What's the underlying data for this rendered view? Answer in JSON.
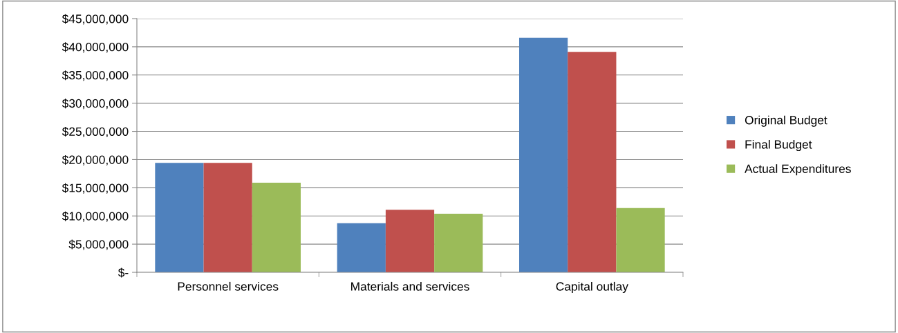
{
  "chart_data": {
    "type": "bar",
    "categories": [
      "Personnel services",
      "Materials and services",
      "Capital outlay"
    ],
    "series": [
      {
        "name": "Original Budget",
        "color": "#4f81bd",
        "values": [
          19400000,
          8700000,
          41600000
        ]
      },
      {
        "name": "Final Budget",
        "color": "#c0504d",
        "values": [
          19400000,
          11100000,
          39100000
        ]
      },
      {
        "name": "Actual Expenditures",
        "color": "#9bbb59",
        "values": [
          15900000,
          10400000,
          11400000
        ]
      }
    ],
    "ylim": [
      0,
      45000000
    ],
    "yticks": [
      {
        "value": 0,
        "label": "$-"
      },
      {
        "value": 5000000,
        "label": "$5,000,000"
      },
      {
        "value": 10000000,
        "label": "$10,000,000"
      },
      {
        "value": 15000000,
        "label": "$15,000,000"
      },
      {
        "value": 20000000,
        "label": "$20,000,000"
      },
      {
        "value": 25000000,
        "label": "$25,000,000"
      },
      {
        "value": 30000000,
        "label": "$30,000,000"
      },
      {
        "value": 35000000,
        "label": "$35,000,000"
      },
      {
        "value": 40000000,
        "label": "$40,000,000"
      },
      {
        "value": 45000000,
        "label": "$45,000,000"
      }
    ],
    "grid": "y",
    "legend": "right"
  }
}
